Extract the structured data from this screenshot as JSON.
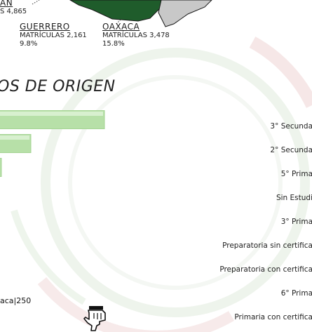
{
  "map": {
    "regions": [
      {
        "name_cut": "ÁN",
        "stat_cut": "S 4,865"
      },
      {
        "name": "GUERRERO",
        "stat": "MATRÍCULAS 2,161",
        "pct": "9.8%"
      },
      {
        "name": "OAXACA",
        "stat": "MATRÍCULAS 3,478",
        "pct": "15.8%"
      }
    ],
    "colors": {
      "region_dark": "#1f5c2b",
      "region_gray": "#c8c8c8",
      "border": "#222222"
    }
  },
  "section_title": "OS DE ORIGEN",
  "footnote": "aca|250",
  "hand_icon": "pointing-hand-icon",
  "chart_data": {
    "type": "bar",
    "orientation": "horizontal",
    "bar_color": "#b7e0a8",
    "categories": [
      "3° Secunda",
      "2° Secunda",
      "5° Prima",
      "Sin Estudi",
      "3° Prima",
      "Preparatoria sin certifica",
      "Preparatoria con certifica",
      "6° Prima",
      "Primaria con certifica"
    ],
    "values": [
      150,
      45,
      3,
      0,
      0,
      0,
      0,
      0,
      0
    ]
  }
}
